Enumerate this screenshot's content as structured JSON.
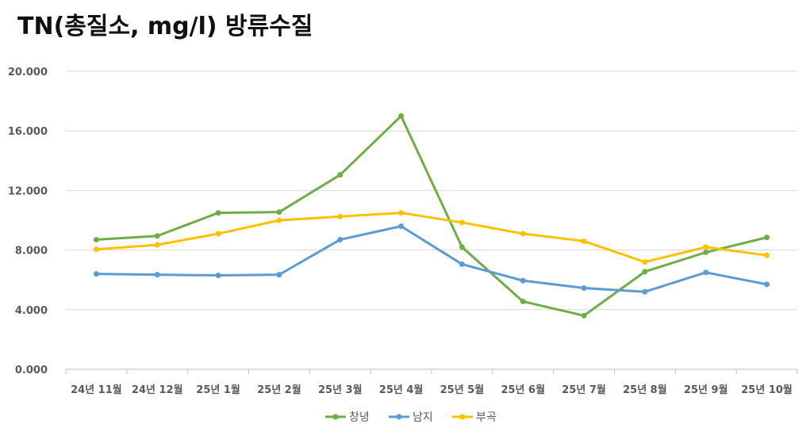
{
  "chart_data": {
    "type": "line",
    "title": "TN(총질소, mg/l) 방류수질",
    "xlabel": "",
    "ylabel": "",
    "ylim": [
      0,
      20
    ],
    "yticks": [
      0,
      4,
      8,
      12,
      16,
      20
    ],
    "ytick_labels": [
      "0.000",
      "4.000",
      "8.000",
      "12.000",
      "16.000",
      "20.000"
    ],
    "grid": true,
    "legend_position": "bottom",
    "categories": [
      "24년 11월",
      "24년 12월",
      "25년 1월",
      "25년 2월",
      "25년 3월",
      "25년 4월",
      "25년 5월",
      "25년 6월",
      "25년 7월",
      "25년 8월",
      "25년 9월",
      "25년 10월"
    ],
    "series": [
      {
        "name": "창녕",
        "color": "#70AD47",
        "values": [
          8.7,
          8.95,
          10.5,
          10.55,
          13.05,
          17.0,
          8.2,
          4.55,
          3.6,
          6.55,
          7.85,
          8.85
        ]
      },
      {
        "name": "남지",
        "color": "#5B9BD5",
        "values": [
          6.4,
          6.35,
          6.3,
          6.35,
          8.7,
          9.6,
          7.05,
          5.95,
          5.45,
          5.2,
          6.5,
          5.7
        ]
      },
      {
        "name": "부곡",
        "color": "#FFC000",
        "values": [
          8.05,
          8.35,
          9.1,
          10.0,
          10.25,
          10.5,
          9.85,
          9.1,
          8.6,
          7.2,
          8.2,
          7.65
        ]
      }
    ]
  }
}
